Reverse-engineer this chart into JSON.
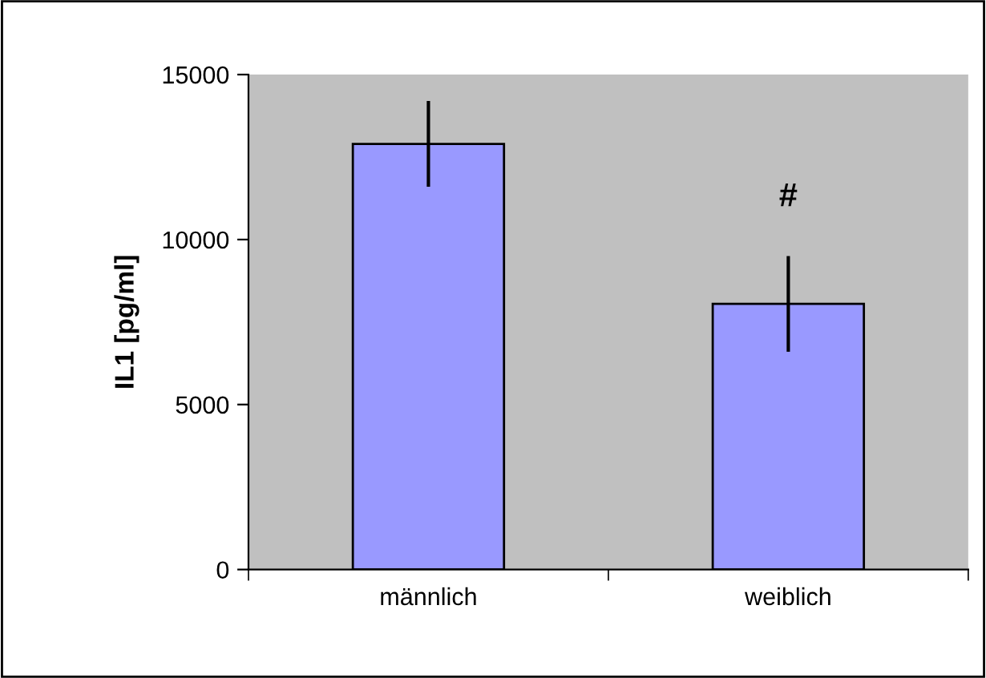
{
  "chart_data": {
    "type": "bar",
    "ylabel": "IL1 [pg/ml]",
    "categories": [
      "männlich",
      "weiblich"
    ],
    "values": [
      12900,
      8050
    ],
    "errors": [
      1300,
      1450
    ],
    "color": "#9999ff",
    "ylim": [
      0,
      15000
    ],
    "yticks": [
      0,
      5000,
      10000,
      15000
    ],
    "grid": false,
    "legend": false,
    "annotations": [
      "#"
    ]
  }
}
